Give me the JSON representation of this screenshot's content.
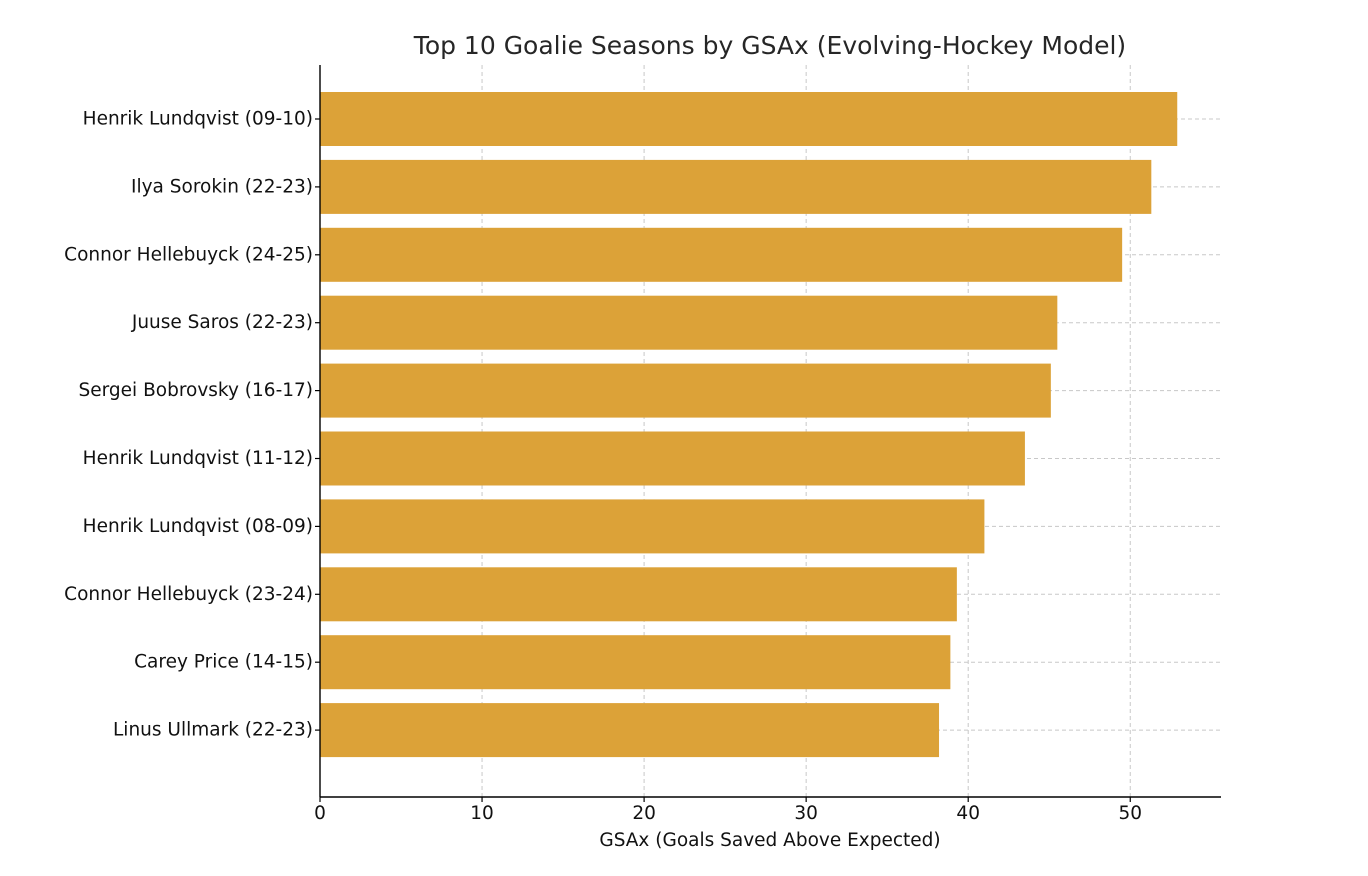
{
  "chart_data": {
    "type": "bar",
    "orientation": "horizontal",
    "title": "Top 10 Goalie Seasons by GSAx (Evolving-Hockey Model)",
    "xlabel": "GSAx (Goals Saved Above Expected)",
    "ylabel": "",
    "categories": [
      "Henrik Lundqvist (09-10)",
      "Ilya Sorokin (22-23)",
      "Connor Hellebuyck (24-25)",
      "Juuse Saros (22-23)",
      "Sergei Bobrovsky (16-17)",
      "Henrik Lundqvist (11-12)",
      "Henrik Lundqvist (08-09)",
      "Connor Hellebuyck (23-24)",
      "Carey Price (14-15)",
      "Linus Ullmark (22-23)"
    ],
    "values": [
      52.9,
      51.3,
      49.5,
      45.5,
      45.1,
      43.5,
      41.0,
      39.3,
      38.9,
      38.2
    ],
    "xlim": [
      0,
      55.6
    ],
    "xticks": [
      0,
      10,
      20,
      30,
      40,
      50
    ],
    "grid": true,
    "bar_color": "#DCA238",
    "legend": "none"
  }
}
